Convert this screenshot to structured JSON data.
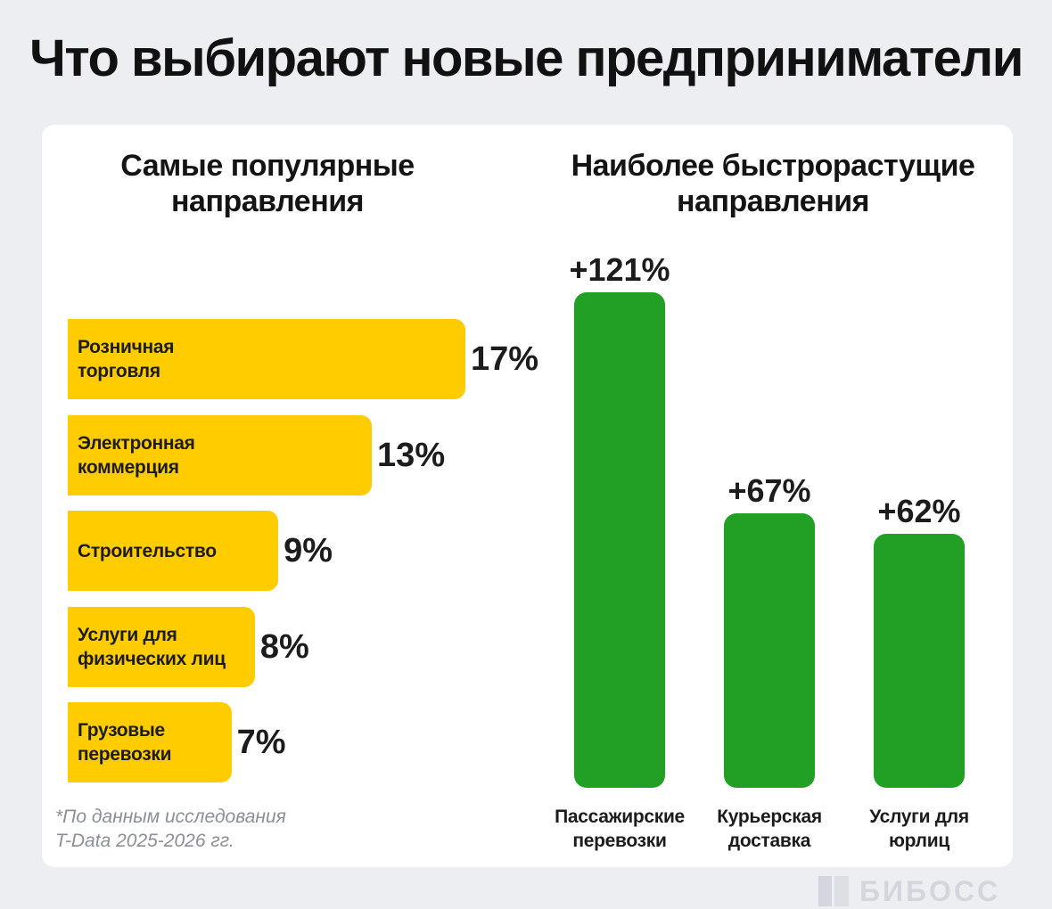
{
  "header": {
    "title": "Что выбирают новые предприниматели"
  },
  "colors": {
    "background": "#eceef2",
    "card": "#ffffff",
    "popular_bar": "#ffcc00",
    "growth_bar": "#21a025",
    "text": "#1c1c1c",
    "footnote": "#8a8f98"
  },
  "chart_data": [
    {
      "type": "bar",
      "orientation": "horizontal",
      "title_lines": [
        "Самые популярные",
        "направления"
      ],
      "categories": [
        [
          "Розничная",
          "торговля"
        ],
        [
          "Электронная",
          "коммерция"
        ],
        [
          "Строительство"
        ],
        [
          "Услуги для",
          "физических лиц"
        ],
        [
          "Грузовые",
          "перевозки"
        ]
      ],
      "values": [
        17,
        13,
        9,
        8,
        7
      ],
      "value_labels": [
        "17%",
        "13%",
        "9%",
        "8%",
        "7%"
      ],
      "unit": "%"
    },
    {
      "type": "bar",
      "orientation": "vertical",
      "title_lines": [
        "Наиболее быстрорастущие",
        "направления"
      ],
      "categories": [
        [
          "Пассажирские",
          "перевозки"
        ],
        [
          "Курьерская",
          "доставка"
        ],
        [
          "Услуги для",
          "юрлиц"
        ]
      ],
      "values": [
        121,
        67,
        62
      ],
      "value_labels": [
        "+121%",
        "+67%",
        "+62%"
      ],
      "unit": "%"
    }
  ],
  "footnote": {
    "lines": [
      "*По данным исследования",
      "T-Data 2025-2026 гг."
    ]
  },
  "brand": {
    "name": "БИБОСС",
    "icon": "bankrot-logo-icon"
  }
}
